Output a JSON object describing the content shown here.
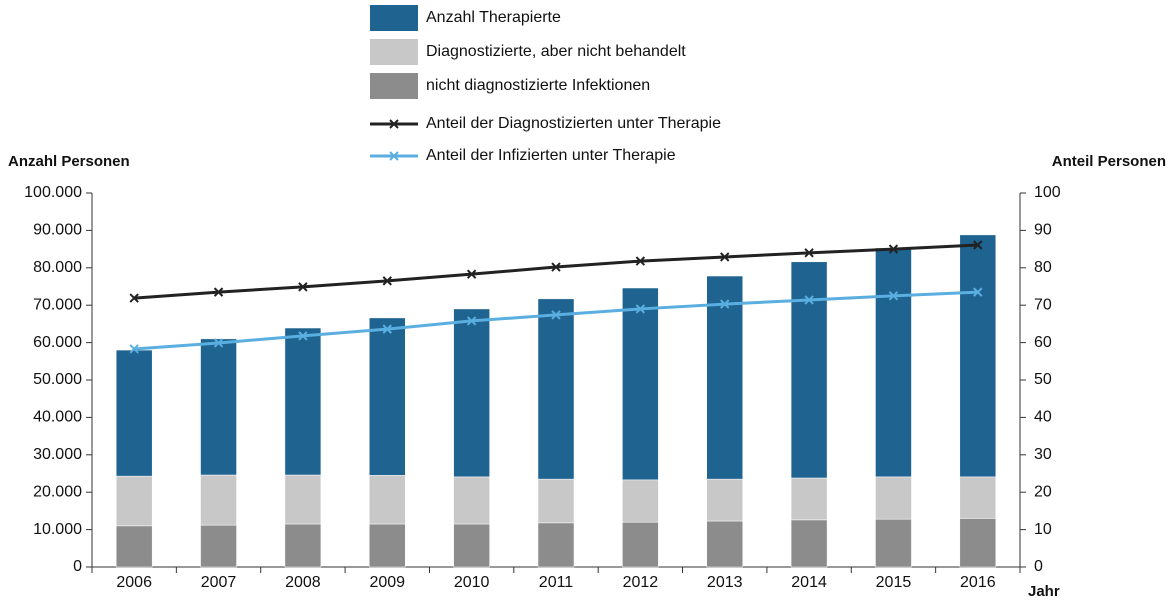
{
  "chart_data": {
    "type": "bar",
    "stacked": true,
    "y_label": "Anzahl Personen",
    "y2_label": "Anteil Personen",
    "x_label": "Jahr",
    "categories": [
      "2006",
      "2007",
      "2008",
      "2009",
      "2010",
      "2011",
      "2012",
      "2013",
      "2014",
      "2015",
      "2016"
    ],
    "series": [
      {
        "name": "Anzahl Therapierte",
        "type": "bar",
        "color": "#1f6390",
        "values": [
          33.7,
          36.4,
          39.3,
          42.1,
          44.9,
          48.2,
          51.3,
          54.3,
          57.8,
          61.2,
          64.7
        ]
      },
      {
        "name": "Diagnostizierte, aber nicht behandelt",
        "type": "bar",
        "color": "#c8c8c8",
        "values": [
          13.3,
          13.4,
          13.1,
          13.0,
          12.6,
          11.7,
          11.3,
          11.2,
          11.2,
          11.3,
          11.1
        ]
      },
      {
        "name": "nicht diagnostizierte Infektionen",
        "type": "bar",
        "color": "#8c8c8c",
        "values": [
          11.0,
          11.2,
          11.5,
          11.5,
          11.5,
          11.8,
          12.0,
          12.3,
          12.6,
          12.8,
          13.0
        ]
      },
      {
        "name": "Anteil der Diagnostizierten unter Therapie",
        "type": "line",
        "axis": "y2",
        "color": "#222222",
        "values": [
          71.9,
          73.5,
          74.9,
          76.5,
          78.3,
          80.2,
          81.8,
          82.9,
          84.0,
          85.0,
          86.1
        ]
      },
      {
        "name": "Anteil der Infizierten unter Therapie",
        "type": "line",
        "axis": "y2",
        "color": "#5aaee0",
        "values": [
          58.3,
          59.9,
          61.8,
          63.6,
          65.8,
          67.4,
          69.0,
          70.3,
          71.4,
          72.5,
          73.5
        ]
      }
    ],
    "ylim": [
      0,
      100
    ],
    "yticks": [
      0,
      {
        "value": 10,
        "label": "10.000"
      },
      {
        "value": 20,
        "label": "20.000"
      },
      {
        "value": 30,
        "label": "30.000"
      },
      {
        "value": 40,
        "label": "40.000"
      },
      {
        "value": 50,
        "label": "50.000"
      },
      {
        "value": 60,
        "label": "60.000"
      },
      {
        "value": 70,
        "label": "70.000"
      },
      {
        "value": 80,
        "label": "80.000"
      },
      {
        "value": 90,
        "label": "90.000"
      },
      {
        "value": 100,
        "label": "100.000"
      }
    ],
    "y2lim": [
      0,
      100
    ],
    "y2ticks": [
      0,
      10,
      20,
      30,
      40,
      50,
      60,
      70,
      80,
      90,
      100
    ]
  }
}
